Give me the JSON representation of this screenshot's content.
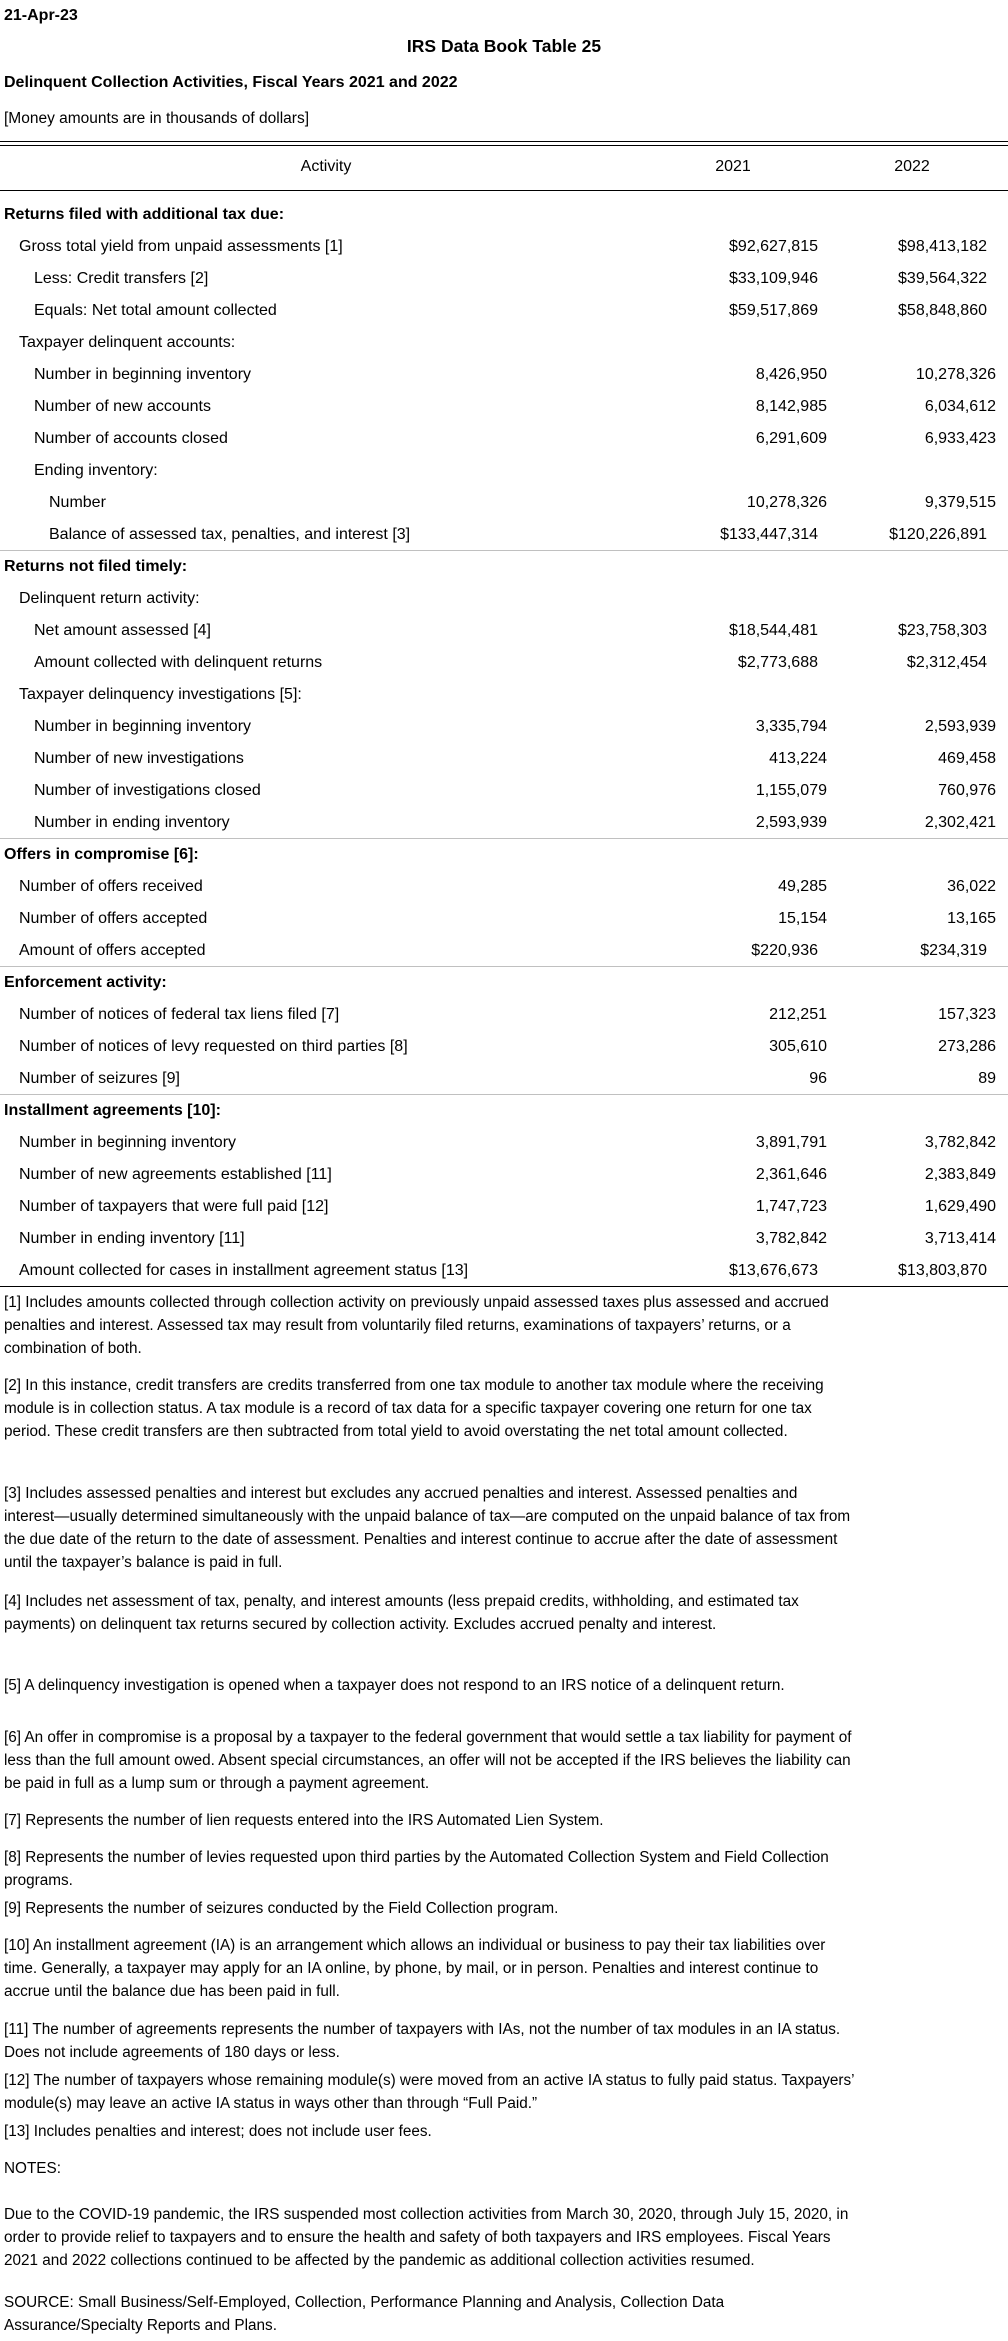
{
  "header": {
    "date": "21-Apr-23",
    "title": "IRS Data Book Table 25",
    "subtitle": "Delinquent Collection Activities, Fiscal Years 2021 and 2022",
    "units_note": "[Money amounts are in thousands of dollars]"
  },
  "table": {
    "columns": [
      "Activity",
      "2021",
      "2022"
    ],
    "sections": [
      {
        "title": "Returns filed with additional tax due:",
        "rows": [
          {
            "label": "Gross total yield from unpaid assessments [1]",
            "level": 1,
            "v2021": "$92,627,815",
            "v2022": "$98,413,182"
          },
          {
            "label": "Less: Credit transfers [2]",
            "level": 2,
            "v2021": "$33,109,946",
            "v2022": "$39,564,322"
          },
          {
            "label": "Equals: Net total amount collected",
            "level": 2,
            "v2021": "$59,517,869",
            "v2022": "$58,848,860"
          },
          {
            "label": "Taxpayer delinquent accounts:",
            "level": 1,
            "v2021": "",
            "v2022": ""
          },
          {
            "label": "Number in beginning inventory",
            "level": 2,
            "v2021": "8,426,950",
            "v2022": "10,278,326"
          },
          {
            "label": "Number of new accounts",
            "level": 2,
            "v2021": "8,142,985",
            "v2022": "6,034,612"
          },
          {
            "label": "Number of accounts closed",
            "level": 2,
            "v2021": "6,291,609",
            "v2022": "6,933,423"
          },
          {
            "label": "Ending inventory:",
            "level": 2,
            "v2021": "",
            "v2022": ""
          },
          {
            "label": "Number",
            "level": 3,
            "v2021": "10,278,326",
            "v2022": "9,379,515"
          },
          {
            "label": "Balance of assessed tax, penalties, and interest [3]",
            "level": 3,
            "v2021": "$133,447,314",
            "v2022": "$120,226,891"
          }
        ]
      },
      {
        "title": "Returns not filed timely:",
        "rows": [
          {
            "label": "Delinquent return activity:",
            "level": 1,
            "v2021": "",
            "v2022": ""
          },
          {
            "label": "Net amount assessed [4]",
            "level": 2,
            "v2021": "$18,544,481",
            "v2022": "$23,758,303"
          },
          {
            "label": "Amount collected with delinquent returns",
            "level": 2,
            "v2021": "$2,773,688",
            "v2022": "$2,312,454"
          },
          {
            "label": "Taxpayer delinquency investigations [5]:",
            "level": 1,
            "v2021": "",
            "v2022": ""
          },
          {
            "label": "Number in beginning inventory",
            "level": 2,
            "v2021": "3,335,794",
            "v2022": "2,593,939"
          },
          {
            "label": "Number of new investigations",
            "level": 2,
            "v2021": "413,224",
            "v2022": "469,458"
          },
          {
            "label": "Number of investigations closed",
            "level": 2,
            "v2021": "1,155,079",
            "v2022": "760,976"
          },
          {
            "label": "Number in ending inventory",
            "level": 2,
            "v2021": "2,593,939",
            "v2022": "2,302,421"
          }
        ]
      },
      {
        "title": "Offers in compromise [6]:",
        "rows": [
          {
            "label": "Number of offers received",
            "level": 1,
            "v2021": "49,285",
            "v2022": "36,022"
          },
          {
            "label": "Number of offers accepted",
            "level": 1,
            "v2021": "15,154",
            "v2022": "13,165"
          },
          {
            "label": "Amount of offers accepted",
            "level": 1,
            "v2021": "$220,936",
            "v2022": "$234,319"
          }
        ]
      },
      {
        "title": "Enforcement activity:",
        "rows": [
          {
            "label": "Number of notices of federal tax liens filed [7]",
            "level": 1,
            "v2021": "212,251",
            "v2022": "157,323"
          },
          {
            "label": "Number of notices of levy requested on third parties [8]",
            "level": 1,
            "v2021": "305,610",
            "v2022": "273,286"
          },
          {
            "label": "Number of seizures [9]",
            "level": 1,
            "v2021": "96",
            "v2022": "89"
          }
        ]
      },
      {
        "title": "Installment agreements [10]:",
        "rows": [
          {
            "label": "Number in beginning inventory",
            "level": 1,
            "v2021": "3,891,791",
            "v2022": "3,782,842"
          },
          {
            "label": "Number of new agreements established [11]",
            "level": 1,
            "v2021": "2,361,646",
            "v2022": "2,383,849"
          },
          {
            "label": "Number of taxpayers that were full paid [12]",
            "level": 1,
            "v2021": "1,747,723",
            "v2022": "1,629,490"
          },
          {
            "label": "Number in ending inventory [11]",
            "level": 1,
            "v2021": "3,782,842",
            "v2022": "3,713,414"
          },
          {
            "label": "Amount collected for cases in installment agreement status [13]",
            "level": 1,
            "v2021": "$13,676,673",
            "v2022": "$13,803,870"
          }
        ]
      }
    ]
  },
  "footnotes": [
    [
      "[1]  Includes amounts collected through collection activity on previously unpaid assessed taxes plus assessed and accrued",
      "penalties and interest. Assessed tax may result from voluntarily filed returns, examinations of taxpayers’ returns, or a",
      "combination of both."
    ],
    [
      "[2]  In this instance, credit transfers are credits transferred from one tax module to another tax module where the receiving",
      "module is in collection status. A tax module is a record of tax data for a specific taxpayer covering one return for one tax",
      "period. These credit transfers are then subtracted from total yield to avoid overstating the net total amount collected."
    ],
    [
      "[3]  Includes assessed penalties and interest but excludes any accrued penalties and interest. Assessed penalties and",
      "interest—usually determined simultaneously with the unpaid balance of tax—are computed on the unpaid balance of tax from",
      "the due date of the return to the date of assessment. Penalties and interest continue to accrue after the date of assessment",
      "until the taxpayer’s balance is paid in full."
    ],
    [
      "[4]  Includes net assessment of tax, penalty, and interest amounts (less prepaid credits, withholding, and estimated tax",
      "payments) on delinquent tax returns secured by collection activity. Excludes accrued penalty and interest."
    ],
    [
      "[5]  A delinquency investigation is opened when a taxpayer does not respond to an IRS notice of a delinquent return."
    ],
    [
      "[6]  An offer in compromise is a proposal by a taxpayer to the federal government that would settle a tax liability for payment of",
      "less than the full amount owed. Absent special circumstances, an offer will not be accepted if the IRS believes the liability can",
      "be paid in full as a lump sum or through a payment agreement."
    ],
    [
      "[7]  Represents the number of lien requests entered into the IRS Automated Lien System."
    ],
    [
      "[8]  Represents the number of levies requested upon third parties by the Automated Collection System and Field Collection",
      "programs."
    ],
    [
      "[9]  Represents the number of seizures conducted by the Field Collection program."
    ],
    [
      "[10]  An installment agreement (IA) is an arrangement which allows an individual or business to pay their tax liabilities over",
      "time. Generally, a taxpayer may apply for an IA online, by phone, by mail, or in person. Penalties and interest continue to",
      "accrue until the balance due has been paid in full."
    ],
    [
      "[11]  The number of agreements represents the number of taxpayers with IAs, not the number of tax modules in an IA status.",
      "Does not include agreements of 180 days or less."
    ],
    [
      "[12]  The number of taxpayers whose remaining module(s) were moved from an active IA status to fully paid status. Taxpayers’",
      "module(s) may leave an active IA status in ways other than through “Full Paid.”"
    ],
    [
      "[13]  Includes penalties and interest; does not include user fees."
    ]
  ],
  "notes": {
    "heading": "NOTES:",
    "text": [
      "Due to the COVID-19 pandemic, the IRS suspended most collection activities from March 30, 2020, through July 15, 2020, in",
      "order to provide relief to taxpayers and to ensure the health and safety of both taxpayers and IRS employees. Fiscal Years",
      "2021 and 2022 collections continued to be affected by the pandemic as additional collection activities resumed."
    ],
    "source": [
      "SOURCE:  Small Business/Self-Employed, Collection, Performance Planning and Analysis, Collection Data",
      "Assurance/Specialty Reports and Plans."
    ]
  },
  "colors": {
    "text": "#000000",
    "section_rule": "#c0c0c0"
  }
}
